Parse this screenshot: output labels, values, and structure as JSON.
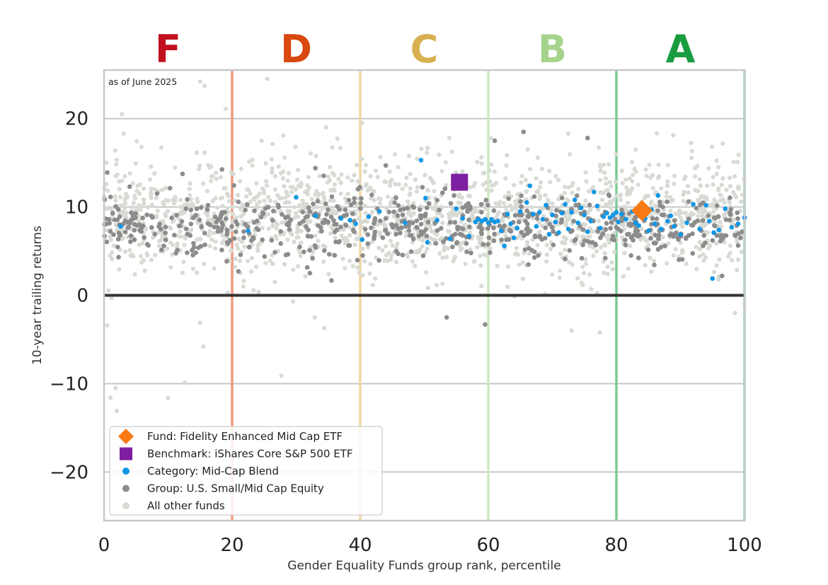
{
  "chart_data": {
    "type": "scatter",
    "note": "as of June 2025",
    "xlabel": "Gender Equality Funds group rank, percentile",
    "ylabel": "10-year trailing returns",
    "xlim": [
      0,
      100
    ],
    "ylim": [
      -25.5,
      25.5
    ],
    "xticks": [
      0,
      20,
      40,
      60,
      80,
      100
    ],
    "xtick_labels": [
      "0",
      "20",
      "40",
      "60",
      "80",
      "100"
    ],
    "yticks": [
      20,
      10,
      0,
      -10,
      -20
    ],
    "ytick_labels": [
      "20",
      "10",
      "0",
      "−10",
      "−20"
    ],
    "grid": "horizontal",
    "grades": [
      {
        "label": "F",
        "x_center": 10,
        "color": "#c0101e"
      },
      {
        "label": "D",
        "x_center": 30,
        "color": "#d9480f"
      },
      {
        "label": "C",
        "x_center": 50,
        "color": "#d8b050"
      },
      {
        "label": "B",
        "x_center": 70,
        "color": "#a6d38c"
      },
      {
        "label": "A",
        "x_center": 90,
        "color": "#199c3f"
      }
    ],
    "grade_boundaries": [
      {
        "x": 20,
        "color": "#ef9a80"
      },
      {
        "x": 40,
        "color": "#efd7a4"
      },
      {
        "x": 60,
        "color": "#cfe8c3"
      },
      {
        "x": 80,
        "color": "#7ccb95"
      },
      {
        "x": 100,
        "color": "#8fd1a4"
      }
    ],
    "legend_position": "lower-left",
    "series": [
      {
        "name": "Fund: Fidelity Enhanced Mid Cap ETF",
        "marker": "diamond",
        "color": "#f97a14",
        "points": [
          [
            84,
            9.6
          ]
        ]
      },
      {
        "name": "Benchmark: iShares Core S&P 500 ETF",
        "marker": "square",
        "color": "#7e1fa1",
        "points": [
          [
            55.5,
            12.8
          ]
        ]
      },
      {
        "name": "Category: Mid-Cap Blend",
        "marker": "dot",
        "color": "#0f96e6",
        "points": [
          [
            2.6,
            7.8
          ],
          [
            22.5,
            7.3
          ],
          [
            30,
            11.1
          ],
          [
            33,
            9
          ],
          [
            37,
            8.7
          ],
          [
            38.4,
            8.5
          ],
          [
            39.3,
            8.1
          ],
          [
            40.3,
            6.3
          ],
          [
            41.3,
            8.9
          ],
          [
            43,
            9.5
          ],
          [
            47,
            8.2
          ],
          [
            49.5,
            15.3
          ],
          [
            50.2,
            11
          ],
          [
            50.5,
            6
          ],
          [
            52,
            8.5
          ],
          [
            54,
            6.4
          ],
          [
            55,
            9.8
          ],
          [
            56,
            8.7
          ],
          [
            57,
            6.7
          ],
          [
            58,
            8.3
          ],
          [
            58.5,
            8.6
          ],
          [
            59,
            8.4
          ],
          [
            59.5,
            8.6
          ],
          [
            60,
            8.2
          ],
          [
            60.5,
            8.6
          ],
          [
            61,
            8.3
          ],
          [
            61.5,
            8.4
          ],
          [
            62,
            7.3
          ],
          [
            62.5,
            5.6
          ],
          [
            63,
            9.2
          ],
          [
            63.5,
            8.1
          ],
          [
            64,
            6.5
          ],
          [
            64.5,
            7.6
          ],
          [
            65,
            9.5
          ],
          [
            66,
            10.5
          ],
          [
            66.5,
            12.4
          ],
          [
            67,
            9.2
          ],
          [
            67.5,
            7.8
          ],
          [
            68,
            9.4
          ],
          [
            68.5,
            8.6
          ],
          [
            69,
            10.2
          ],
          [
            69.5,
            6.9
          ],
          [
            70,
            9.1
          ],
          [
            70.5,
            8.3
          ],
          [
            71,
            7.1
          ],
          [
            71.5,
            9.3
          ],
          [
            72,
            10.3
          ],
          [
            72.5,
            7.5
          ],
          [
            73,
            9.4
          ],
          [
            73.5,
            10.8
          ],
          [
            74,
            8.2
          ],
          [
            74.5,
            9.9
          ],
          [
            75,
            9.1
          ],
          [
            75.5,
            7.2
          ],
          [
            76,
            8.4
          ],
          [
            76.5,
            11.7
          ],
          [
            77,
            10.1
          ],
          [
            77.5,
            7.6
          ],
          [
            78,
            8.9
          ],
          [
            78.5,
            9.3
          ],
          [
            79,
            8.8
          ],
          [
            79.5,
            9.1
          ],
          [
            80,
            9.4
          ],
          [
            80.3,
            8.3
          ],
          [
            80.8,
            9.2
          ],
          [
            81.5,
            8.6
          ],
          [
            82.5,
            9.5
          ],
          [
            83,
            8.2
          ],
          [
            83.5,
            7.9
          ],
          [
            84.5,
            8.7
          ],
          [
            85,
            7.3
          ],
          [
            85.5,
            9.7
          ],
          [
            86,
            8.1
          ],
          [
            86.5,
            11.3
          ],
          [
            87,
            7.5
          ],
          [
            88,
            8.4
          ],
          [
            88.5,
            9
          ],
          [
            89,
            7.8
          ],
          [
            90,
            6.9
          ],
          [
            91,
            8.2
          ],
          [
            92,
            10.3
          ],
          [
            93,
            7.5
          ],
          [
            94,
            10.2
          ],
          [
            94.5,
            8.4
          ],
          [
            95.2,
            7.1
          ],
          [
            95,
            1.9
          ],
          [
            96,
            7.4
          ],
          [
            97,
            9.8
          ],
          [
            98,
            7.7
          ],
          [
            99,
            8.1
          ],
          [
            100,
            8.8
          ]
        ]
      }
    ],
    "background_groups": [
      {
        "name": "Group: U.S. Small/Mid Cap Equity",
        "marker": "dot",
        "color": "#8c8c8c",
        "x_range": [
          0,
          100
        ],
        "y_center": 7.8,
        "y_spread": 1.8,
        "count": 640,
        "outliers": [
          [
            53.5,
            -2.5
          ],
          [
            59.5,
            -3.3
          ],
          [
            61,
            17.5
          ],
          [
            65.5,
            18.5
          ],
          [
            75.5,
            17.8
          ],
          [
            96.5,
            2.2
          ],
          [
            56.5,
            10.1
          ],
          [
            0.5,
            13.9
          ],
          [
            4,
            12.3
          ],
          [
            33,
            14.4
          ],
          [
            44,
            14.7
          ]
        ]
      },
      {
        "name": "All other funds",
        "marker": "dot",
        "color": "#d7dbd4",
        "x_range": [
          0,
          100
        ],
        "y_center": 8.8,
        "y_spread": 3.2,
        "count": 1700,
        "outliers": [
          [
            15,
            24.2
          ],
          [
            15.7,
            23.7
          ],
          [
            25.5,
            24.5
          ],
          [
            19,
            21.1
          ],
          [
            2.8,
            20.5
          ],
          [
            28,
            18.1
          ],
          [
            34.7,
            19
          ],
          [
            1.2,
            -0.3
          ],
          [
            0.5,
            -3.4
          ],
          [
            1.8,
            -10.5
          ],
          [
            1,
            -11.6
          ],
          [
            2,
            -13.1
          ],
          [
            10,
            -11.6
          ],
          [
            12.6,
            -9.9
          ],
          [
            15,
            -3.1
          ],
          [
            15.5,
            -5.8
          ],
          [
            27.7,
            -9.1
          ],
          [
            32.9,
            -2.5
          ],
          [
            34.4,
            -3.7
          ],
          [
            29.5,
            -0.7
          ],
          [
            73,
            -4
          ],
          [
            77.4,
            -4.2
          ],
          [
            98.5,
            -2
          ],
          [
            100,
            -1
          ]
        ]
      }
    ]
  }
}
